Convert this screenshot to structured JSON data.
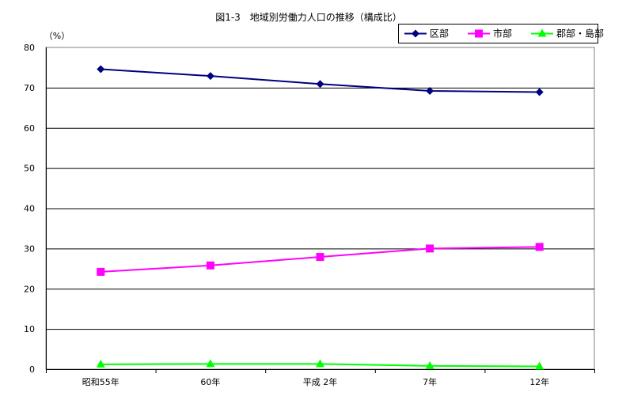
{
  "chart_data": {
    "type": "line",
    "title": "図1-3　地域別労働力人口の推移（構成比）",
    "ylabel": "（%）",
    "xlabel": "",
    "categories": [
      "昭和55年",
      "60年",
      "平成 2年",
      "7年",
      "12年"
    ],
    "ylim": [
      0,
      80
    ],
    "yticks": [
      0,
      10,
      20,
      30,
      40,
      50,
      60,
      70,
      80
    ],
    "grid": "horizontal",
    "legend_position": "top-right",
    "series": [
      {
        "name": "区部",
        "color": "#000080",
        "marker": "diamond",
        "values": [
          74.6,
          72.9,
          70.9,
          69.2,
          68.9
        ]
      },
      {
        "name": "市部",
        "color": "#ff00ff",
        "marker": "square",
        "values": [
          24.2,
          25.8,
          27.9,
          30.0,
          30.4
        ]
      },
      {
        "name": "郡部・島部",
        "color": "#00ff00",
        "marker": "triangle",
        "values": [
          1.2,
          1.3,
          1.3,
          0.8,
          0.7
        ]
      }
    ]
  }
}
